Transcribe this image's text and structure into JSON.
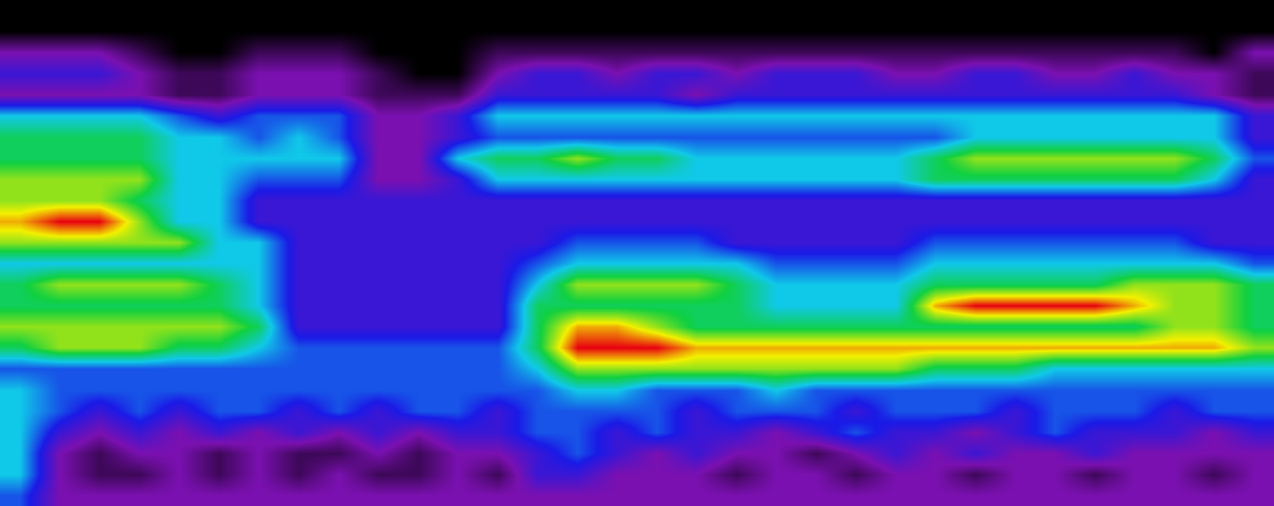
{
  "chart_data": {
    "type": "heatmap",
    "xlim": [
      -0.5,
      31.5
    ],
    "ylim": [
      23.5,
      -0.5
    ],
    "zlim": [
      0,
      10
    ],
    "tick_labels": false,
    "grid": false,
    "cells": [
      [
        0,
        0,
        0,
        0,
        0,
        0,
        0,
        0,
        0,
        0,
        0,
        0,
        0,
        0,
        0,
        0,
        0,
        0,
        0,
        0,
        0,
        0,
        0,
        0,
        0,
        0,
        0,
        0,
        0,
        0,
        0,
        0
      ],
      [
        0,
        0,
        0,
        0,
        0,
        0,
        0,
        0,
        0,
        0,
        0,
        0,
        0,
        0,
        0,
        0,
        0,
        0,
        0,
        0,
        0,
        0,
        0,
        0,
        0,
        0,
        0,
        0,
        0,
        0,
        0,
        0
      ],
      [
        2,
        2,
        2,
        1,
        0,
        0,
        1,
        1,
        1,
        0,
        0,
        0,
        1,
        1,
        1,
        1,
        1,
        1,
        1,
        1,
        1,
        1,
        1,
        1,
        1,
        1,
        1,
        1,
        1,
        1,
        0,
        2
      ],
      [
        3,
        3,
        3,
        2,
        1,
        1,
        2,
        2,
        2,
        1,
        0,
        0,
        2,
        3,
        3,
        2,
        3,
        3,
        2,
        3,
        3,
        3,
        2,
        2,
        3,
        3,
        2,
        2,
        3,
        2,
        2,
        1
      ],
      [
        2,
        2,
        2,
        2,
        1,
        1,
        2,
        2,
        2,
        1,
        1,
        1,
        3,
        3,
        3,
        3,
        3,
        2,
        3,
        3,
        3,
        3,
        3,
        3,
        3,
        3,
        3,
        3,
        3,
        3,
        2,
        1
      ],
      [
        5,
        5,
        5,
        5,
        4,
        3,
        4,
        4,
        4,
        2,
        2,
        3,
        5,
        5,
        5,
        5,
        5,
        5,
        5,
        5,
        5,
        5,
        5,
        5,
        5,
        5,
        5,
        5,
        5,
        5,
        5,
        3
      ],
      [
        6,
        6,
        6,
        6,
        5,
        5,
        4,
        5,
        4,
        2,
        2,
        3,
        4,
        4,
        4,
        4,
        4,
        4,
        4,
        4,
        4,
        4,
        4,
        4,
        5,
        5,
        5,
        5,
        5,
        5,
        5,
        3
      ],
      [
        6,
        6,
        6,
        6,
        5,
        5,
        5,
        5,
        5,
        2,
        2,
        5,
        6,
        6,
        7,
        6,
        6,
        5,
        5,
        5,
        5,
        5,
        5,
        6,
        7,
        7,
        7,
        7,
        7,
        7,
        6,
        4
      ],
      [
        7,
        7,
        7,
        7,
        5,
        5,
        4,
        4,
        4,
        2,
        2,
        3,
        5,
        5,
        5,
        5,
        5,
        5,
        5,
        5,
        5,
        5,
        5,
        6,
        6,
        6,
        6,
        6,
        6,
        6,
        5,
        3
      ],
      [
        7,
        7,
        7,
        6,
        5,
        5,
        3,
        3,
        3,
        3,
        3,
        3,
        3,
        3,
        3,
        3,
        3,
        3,
        3,
        3,
        3,
        3,
        3,
        3,
        3,
        3,
        3,
        3,
        3,
        3,
        3,
        3
      ],
      [
        8,
        9,
        9,
        7,
        5,
        5,
        3,
        3,
        3,
        3,
        3,
        3,
        3,
        3,
        3,
        3,
        3,
        3,
        3,
        3,
        3,
        3,
        3,
        3,
        3,
        3,
        3,
        3,
        3,
        3,
        3,
        3
      ],
      [
        7,
        7,
        7,
        7,
        7,
        5,
        5,
        3,
        3,
        3,
        3,
        3,
        3,
        3,
        4,
        4,
        4,
        4,
        3,
        3,
        3,
        3,
        3,
        4,
        4,
        4,
        4,
        4,
        4,
        4,
        3,
        3
      ],
      [
        5,
        5,
        5,
        5,
        5,
        5,
        5,
        3,
        3,
        3,
        3,
        3,
        3,
        4,
        5,
        5,
        5,
        5,
        5,
        4,
        4,
        4,
        4,
        5,
        5,
        5,
        5,
        5,
        5,
        5,
        5,
        4
      ],
      [
        6,
        7,
        7,
        7,
        7,
        6,
        5,
        3,
        3,
        3,
        3,
        3,
        3,
        5,
        7,
        7,
        7,
        7,
        6,
        5,
        5,
        5,
        5,
        6,
        6,
        6,
        6,
        6,
        7,
        7,
        7,
        6
      ],
      [
        6,
        6,
        6,
        6,
        6,
        6,
        5,
        3,
        3,
        3,
        3,
        3,
        3,
        6,
        6,
        6,
        6,
        6,
        6,
        5,
        5,
        5,
        5,
        8,
        9,
        9,
        9,
        9,
        8,
        7,
        7,
        6
      ],
      [
        7,
        7,
        7,
        7,
        7,
        7,
        6,
        3,
        3,
        3,
        3,
        3,
        3,
        6,
        8,
        8,
        7,
        6,
        6,
        6,
        6,
        6,
        6,
        6,
        6,
        6,
        6,
        6,
        6,
        7,
        7,
        6
      ],
      [
        6,
        7,
        7,
        7,
        6,
        6,
        5,
        4,
        4,
        4,
        4,
        4,
        4,
        6,
        9,
        9,
        9,
        8,
        8,
        8,
        8,
        8,
        8,
        8,
        8,
        8,
        8,
        8,
        8,
        8,
        8,
        7
      ],
      [
        4,
        4,
        4,
        4,
        4,
        4,
        4,
        4,
        4,
        4,
        4,
        4,
        4,
        5,
        7,
        7,
        7,
        7,
        7,
        7,
        7,
        7,
        7,
        6,
        6,
        6,
        5,
        5,
        5,
        5,
        5,
        5
      ],
      [
        5,
        4,
        4,
        4,
        4,
        4,
        4,
        4,
        4,
        4,
        4,
        4,
        4,
        4,
        5,
        5,
        4,
        4,
        4,
        5,
        4,
        4,
        4,
        4,
        4,
        4,
        4,
        4,
        4,
        4,
        4,
        4
      ],
      [
        5,
        4,
        3,
        4,
        3,
        4,
        4,
        3,
        4,
        3,
        4,
        4,
        3,
        4,
        4,
        4,
        4,
        3,
        4,
        4,
        4,
        3,
        4,
        4,
        4,
        3,
        4,
        4,
        4,
        3,
        4,
        4
      ],
      [
        5,
        3,
        2,
        3,
        2,
        3,
        2,
        3,
        2,
        3,
        2,
        3,
        3,
        4,
        4,
        3,
        4,
        3,
        3,
        2,
        3,
        4,
        3,
        3,
        2,
        3,
        4,
        3,
        3,
        3,
        2,
        3
      ],
      [
        5,
        2,
        1,
        2,
        2,
        1,
        2,
        1,
        1,
        2,
        1,
        2,
        2,
        3,
        4,
        3,
        2,
        3,
        2,
        2,
        1,
        2,
        3,
        2,
        3,
        2,
        2,
        3,
        2,
        2,
        2,
        2
      ],
      [
        5,
        2,
        1,
        1,
        2,
        1,
        2,
        1,
        2,
        1,
        1,
        2,
        1,
        3,
        3,
        2,
        2,
        2,
        1,
        2,
        2,
        1,
        2,
        2,
        1,
        2,
        2,
        1,
        2,
        2,
        1,
        2
      ],
      [
        4,
        2,
        2,
        2,
        2,
        2,
        2,
        2,
        2,
        2,
        2,
        2,
        2,
        2,
        2,
        2,
        2,
        2,
        2,
        2,
        2,
        2,
        2,
        2,
        2,
        2,
        2,
        2,
        2,
        2,
        2,
        2
      ]
    ]
  }
}
